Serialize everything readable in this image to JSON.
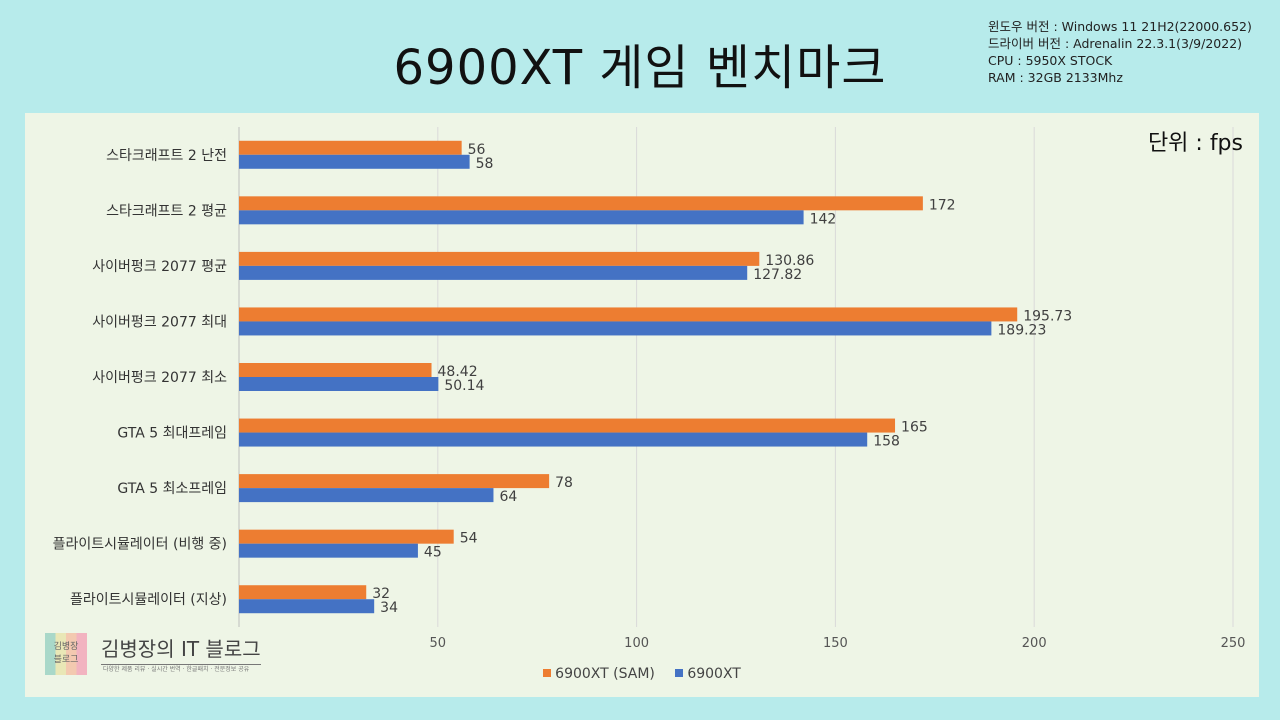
{
  "header": {
    "title": "6900XT 게임 벤치마크",
    "specs": [
      "윈도우 버전 : Windows 11 21H2(22000.652)",
      "드라이버 버전 : Adrenalin 22.3.1(3/9/2022)",
      "CPU : 5950X STOCK",
      "RAM : 32GB 2133Mhz"
    ]
  },
  "unit_label": "단위 : fps",
  "logo": {
    "mark_text": "김병장\n블로그",
    "name": "김병장의 IT 블로그",
    "subtitle": "다양한 제품 리뷰 · 실시간 번역 · 한글패치 · 전문정보 공유"
  },
  "colors": {
    "series_sam": "#ed7d31",
    "series_plain": "#4472c4",
    "grid": "#d9d9d9",
    "text": "#444444"
  },
  "chart_data": {
    "type": "bar",
    "orientation": "horizontal",
    "title": "6900XT 게임 벤치마크",
    "unit": "fps",
    "categories": [
      "스타크래프트 2 난전",
      "스타크래프트 2 평균",
      "사이버펑크 2077 평균",
      "사이버펑크 2077 최대",
      "사이버펑크 2077 최소",
      "GTA 5 최대프레임",
      "GTA 5 최소프레임",
      "플라이트시뮬레이터 (비행 중)",
      "플라이트시뮬레이터 (지상)"
    ],
    "series": [
      {
        "name": "6900XT (SAM)",
        "values": [
          56,
          172,
          130.86,
          195.73,
          48.42,
          165,
          78,
          54,
          32
        ],
        "labels": [
          "56",
          "172",
          "130.86",
          "195.73",
          "48.42",
          "165",
          "78",
          "54",
          "32"
        ],
        "color": "#ed7d31"
      },
      {
        "name": "6900XT",
        "values": [
          58,
          142,
          127.82,
          189.23,
          50.14,
          158,
          64,
          45,
          34
        ],
        "labels": [
          "58",
          "142",
          "127.82",
          "189.23",
          "50.14",
          "158",
          "64",
          "45",
          "34"
        ],
        "color": "#4472c4"
      }
    ],
    "xlim": [
      0,
      250
    ],
    "xticks": [
      "50",
      "100",
      "150",
      "200",
      "250"
    ],
    "grid": true,
    "legend": "bottom"
  }
}
